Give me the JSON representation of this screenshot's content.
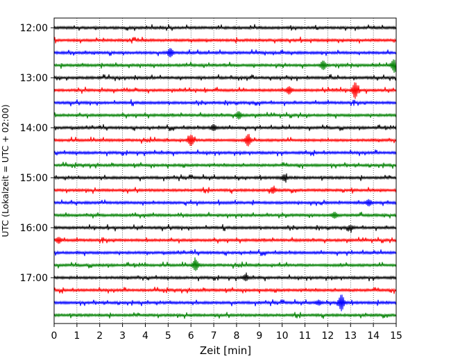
{
  "chart_data": {
    "type": "line",
    "title": "",
    "xlabel": "Zeit  [min]",
    "ylabel": "UTC (Lokalzeit = UTC + 02:00)",
    "xlim": [
      0,
      15
    ],
    "x_ticks": [
      0,
      1,
      2,
      3,
      4,
      5,
      6,
      7,
      8,
      9,
      10,
      11,
      12,
      13,
      14,
      15
    ],
    "x_tick_labels": [
      "0",
      "1",
      "2",
      "3",
      "4",
      "5",
      "6",
      "7",
      "8",
      "9",
      "10",
      "11",
      "12",
      "13",
      "14",
      "15"
    ],
    "y_tick_labels": [
      "12:00",
      "13:00",
      "14:00",
      "15:00",
      "16:00",
      "17:00"
    ],
    "vertical_grid": "dotted",
    "color_cycle": [
      "#000000",
      "#ff0000",
      "#0000ff",
      "#008000"
    ],
    "traces_start": "12:00",
    "trace_interval_minutes": 15,
    "trace_count": 24,
    "events": [
      {
        "trace": 2,
        "minute": 5.1,
        "amplitude": 0.6
      },
      {
        "trace": 3,
        "minute": 11.8,
        "amplitude": 0.6
      },
      {
        "trace": 3,
        "minute": 14.9,
        "amplitude": 0.8
      },
      {
        "trace": 5,
        "minute": 13.2,
        "amplitude": 1.2
      },
      {
        "trace": 5,
        "minute": 10.3,
        "amplitude": 0.5
      },
      {
        "trace": 7,
        "minute": 8.1,
        "amplitude": 0.5
      },
      {
        "trace": 8,
        "minute": 7.0,
        "amplitude": 0.4
      },
      {
        "trace": 9,
        "minute": 6.0,
        "amplitude": 0.8
      },
      {
        "trace": 9,
        "minute": 8.5,
        "amplitude": 0.8
      },
      {
        "trace": 12,
        "minute": 10.1,
        "amplitude": 0.4
      },
      {
        "trace": 13,
        "minute": 9.6,
        "amplitude": 0.4
      },
      {
        "trace": 14,
        "minute": 13.8,
        "amplitude": 0.4
      },
      {
        "trace": 15,
        "minute": 12.3,
        "amplitude": 0.4
      },
      {
        "trace": 16,
        "minute": 13.0,
        "amplitude": 0.3
      },
      {
        "trace": 17,
        "minute": 0.2,
        "amplitude": 0.4
      },
      {
        "trace": 19,
        "minute": 6.2,
        "amplitude": 0.8
      },
      {
        "trace": 20,
        "minute": 8.4,
        "amplitude": 0.4
      },
      {
        "trace": 22,
        "minute": 12.6,
        "amplitude": 1.2
      },
      {
        "trace": 22,
        "minute": 11.6,
        "amplitude": 0.3
      }
    ]
  }
}
